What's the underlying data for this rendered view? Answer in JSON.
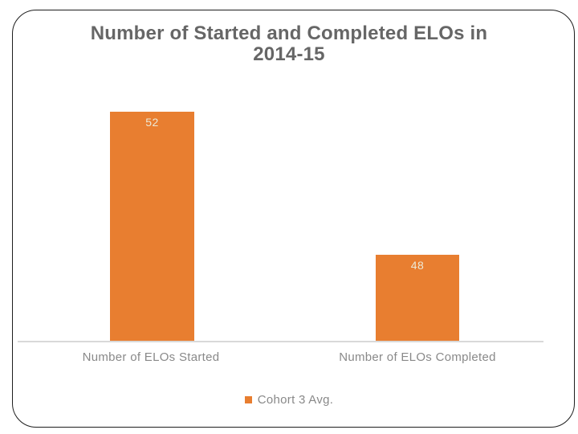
{
  "slide": {
    "title_line1": "Number of Started and Completed ELOs in",
    "title_line2": "2014-15"
  },
  "chart_data": {
    "type": "bar",
    "title": "Number of Started and Completed ELOs in 2014-15",
    "categories": [
      "Number of ELOs Started",
      "Number of ELOs Completed"
    ],
    "series": [
      {
        "name": "Cohort 3 Avg.",
        "values": [
          52,
          48
        ],
        "color": "#E87E30"
      }
    ],
    "data_labels": [
      "52",
      "48"
    ],
    "data_label_position": "inside-end",
    "data_label_color": "#EDE9D6",
    "xlabel": "",
    "ylabel": "",
    "ylim": [
      45.5,
      53
    ],
    "grid": false,
    "y_axis_visible": false,
    "legend_position": "bottom",
    "axis_line_color": "#D9D9D9",
    "category_label_color": "#898989",
    "title_color": "#666666"
  }
}
